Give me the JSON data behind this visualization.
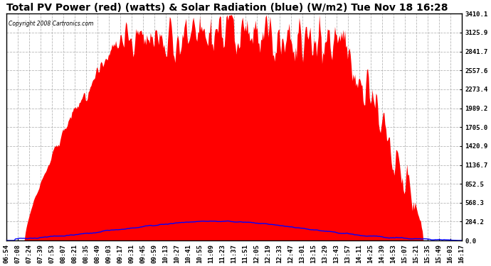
{
  "title": "Total PV Power (red) (watts) & Solar Radiation (blue) (W/m2) Tue Nov 18 16:28",
  "copyright": "Copyright 2008 Cartronics.com",
  "yticks": [
    0.0,
    284.2,
    568.3,
    852.5,
    1136.7,
    1420.9,
    1705.0,
    1989.2,
    2273.4,
    2557.6,
    2841.7,
    3125.9,
    3410.1
  ],
  "ymax": 3410.1,
  "xtick_labels": [
    "06:54",
    "07:08",
    "07:24",
    "07:39",
    "07:53",
    "08:07",
    "08:21",
    "08:35",
    "08:49",
    "09:03",
    "09:17",
    "09:31",
    "09:45",
    "09:59",
    "10:13",
    "10:27",
    "10:41",
    "10:55",
    "11:09",
    "11:23",
    "11:37",
    "11:51",
    "12:05",
    "12:19",
    "12:33",
    "12:47",
    "13:01",
    "13:15",
    "13:29",
    "13:43",
    "13:57",
    "14:11",
    "14:25",
    "14:39",
    "14:53",
    "15:07",
    "15:21",
    "15:35",
    "15:49",
    "16:03",
    "16:17"
  ],
  "bg_color": "#ffffff",
  "plot_bg_color": "#ffffff",
  "grid_color": "#b0b0b0",
  "red_color": "#ff0000",
  "blue_color": "#0000ff",
  "title_fontsize": 10,
  "tick_fontsize": 6.5,
  "n_points": 500
}
